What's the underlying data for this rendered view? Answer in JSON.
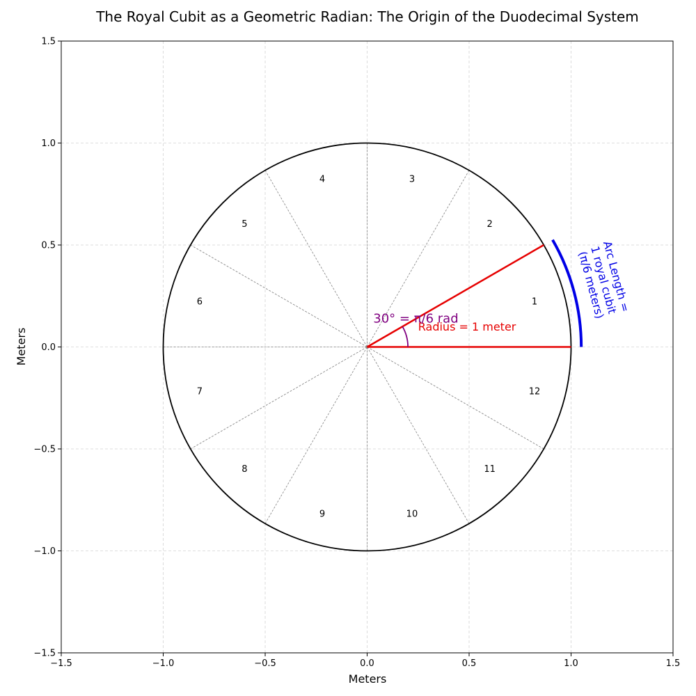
{
  "chart_data": {
    "type": "line",
    "title": "The Royal Cubit as a Geometric Radian: The Origin of the Duodecimal System",
    "xlabel": "Meters",
    "ylabel": "Meters",
    "xlim": [
      -1.5,
      1.5
    ],
    "ylim": [
      -1.5,
      1.5
    ],
    "xticks": [
      -1.5,
      -1.0,
      -0.5,
      0.0,
      0.5,
      1.0,
      1.5
    ],
    "yticks": [
      -1.5,
      -1.0,
      -0.5,
      0.0,
      0.5,
      1.0,
      1.5
    ],
    "xtick_labels": [
      "−1.5",
      "−1.0",
      "−0.5",
      "0.0",
      "0.5",
      "1.0",
      "1.5"
    ],
    "ytick_labels": [
      "−1.5",
      "−1.0",
      "−0.5",
      "0.0",
      "0.5",
      "1.0",
      "1.5"
    ],
    "grid": true,
    "circle": {
      "radius": 1.0,
      "color": "#000000"
    },
    "divisions": 12,
    "division_color": "#808080",
    "sector_labels": [
      {
        "text": "1",
        "angle_deg": 15
      },
      {
        "text": "2",
        "angle_deg": 45
      },
      {
        "text": "3",
        "angle_deg": 75
      },
      {
        "text": "4",
        "angle_deg": 105
      },
      {
        "text": "5",
        "angle_deg": 135
      },
      {
        "text": "6",
        "angle_deg": 165
      },
      {
        "text": "7",
        "angle_deg": 195
      },
      {
        "text": "8",
        "angle_deg": 225
      },
      {
        "text": "9",
        "angle_deg": 255
      },
      {
        "text": "10",
        "angle_deg": 285
      },
      {
        "text": "11",
        "angle_deg": 315
      },
      {
        "text": "12",
        "angle_deg": 345
      }
    ],
    "sector_label_radius": 0.85,
    "radius_lines": [
      {
        "angle_deg": 0,
        "length": 1.0
      },
      {
        "angle_deg": 30,
        "length": 1.0
      }
    ],
    "radius_color": "#e60000",
    "radius_label": {
      "text": "Radius = 1 meter",
      "x": 0.25,
      "y": 0.08,
      "color": "#e60000"
    },
    "angle_arc": {
      "radius": 0.2,
      "start_deg": 0,
      "end_deg": 30,
      "color": "#800080"
    },
    "angle_label": {
      "text": "30° = π/6 rad",
      "x": 0.03,
      "y": 0.12,
      "color": "#800080"
    },
    "arc_highlight": {
      "radius": 1.05,
      "start_deg": 0,
      "end_deg": 30,
      "color": "#0000e6"
    },
    "arc_label": {
      "lines": [
        "Arc Length =",
        "1 royal cubit",
        "(π/6 meters)"
      ],
      "x": 1.16,
      "y": 0.32,
      "rotation_deg": -75,
      "color": "#0000e6"
    }
  }
}
